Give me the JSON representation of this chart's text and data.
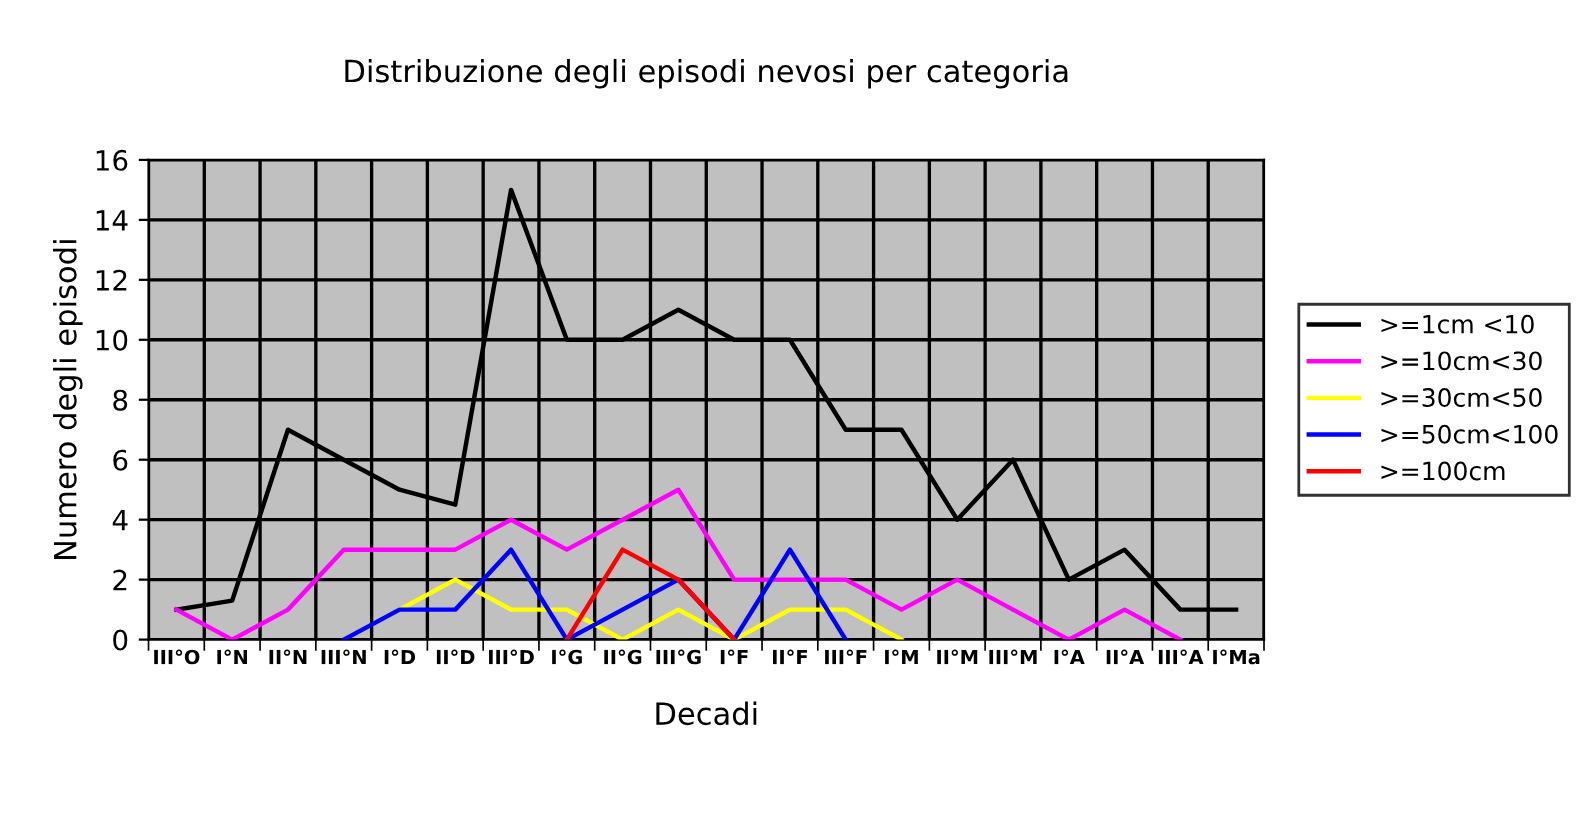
{
  "chart_data": {
    "type": "line",
    "title": "Distribuzione degli episodi nevosi per categoria",
    "xlabel": "Decadi",
    "ylabel": "Numero degli episodi",
    "categories": [
      "III°O",
      "I°N",
      "II°N",
      "III°N",
      "I°D",
      "II°D",
      "III°D",
      "I°G",
      "II°G",
      "III°G",
      "I°F",
      "II°F",
      "III°F",
      "I°M",
      "II°M",
      "III°M",
      "I°A",
      "II°A",
      "III°A",
      "I°Ma"
    ],
    "series": [
      {
        "name": ">=1cm <10",
        "color": "#000000",
        "values": [
          1,
          1.3,
          7,
          6,
          5,
          4.5,
          15,
          10,
          10,
          11,
          10,
          10,
          7,
          7,
          4,
          6,
          2,
          3,
          1,
          1
        ]
      },
      {
        "name": ">=10cm<30",
        "color": "#ff00ff",
        "values": [
          1,
          0,
          1,
          3,
          3,
          3,
          4,
          3,
          4,
          5,
          2,
          2,
          2,
          1,
          2,
          1,
          0,
          1,
          0,
          null
        ]
      },
      {
        "name": ">=30cm<50",
        "color": "#ffff00",
        "values": [
          null,
          null,
          null,
          null,
          1,
          2,
          1,
          1,
          0,
          1,
          0,
          1,
          1,
          0,
          null,
          null,
          null,
          null,
          null,
          null
        ]
      },
      {
        "name": ">=50cm<100",
        "color": "#0000ff",
        "values": [
          null,
          null,
          null,
          0,
          1,
          1,
          3,
          0,
          1,
          2,
          0,
          3,
          0,
          null,
          null,
          null,
          null,
          null,
          null,
          null
        ]
      },
      {
        "name": ">=100cm",
        "color": "#ff0000",
        "values": [
          null,
          null,
          null,
          null,
          null,
          null,
          null,
          0,
          3,
          2,
          0,
          null,
          null,
          null,
          null,
          null,
          null,
          null,
          null,
          null
        ]
      }
    ],
    "ylim": [
      0,
      16
    ],
    "yticks": [
      0,
      2,
      4,
      6,
      8,
      10,
      12,
      14,
      16
    ],
    "grid": true,
    "legend": "right",
    "marker": "none",
    "line_style": "solid"
  }
}
